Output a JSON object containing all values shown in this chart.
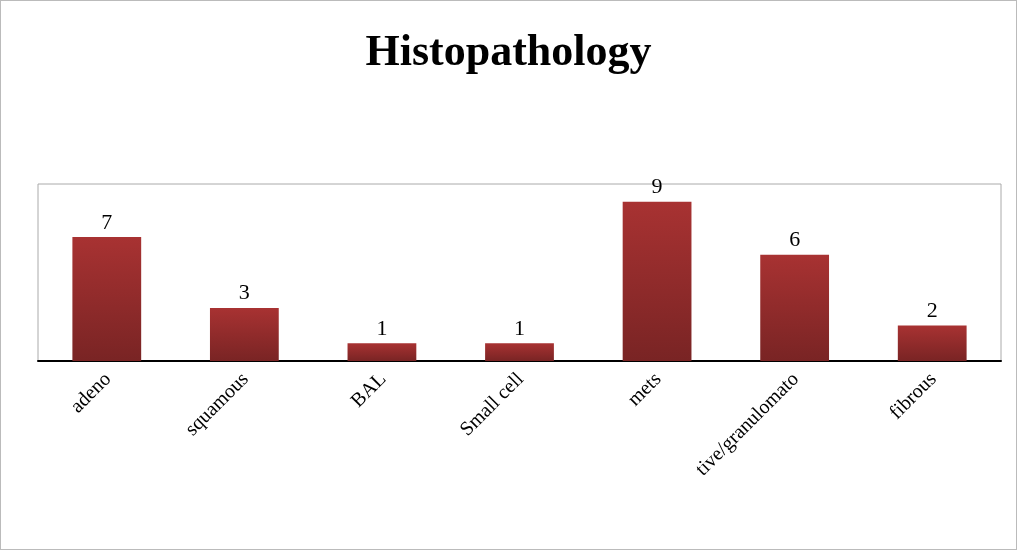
{
  "chart_data": {
    "type": "bar",
    "title": "Histopathology",
    "categories": [
      "adeno",
      "squamous",
      "BAL",
      "Small cell",
      "mets",
      "tive/granulomato",
      "fibrous"
    ],
    "values": [
      7,
      3,
      1,
      1,
      9,
      6,
      2
    ],
    "color": "#a83232",
    "data_labels": true
  }
}
